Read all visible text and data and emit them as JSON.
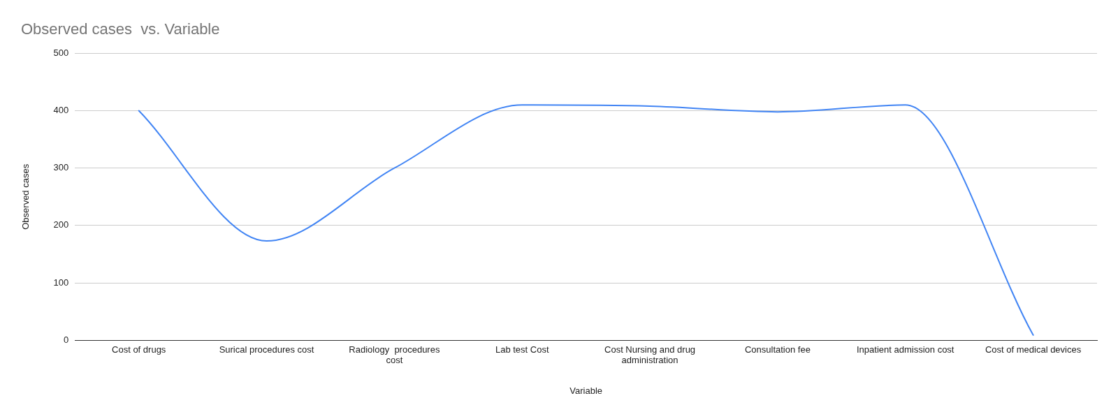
{
  "chart_data": {
    "type": "line",
    "title": "Observed cases  vs. Variable",
    "xlabel": "Variable",
    "ylabel": "Observed cases",
    "categories": [
      "Cost of drugs",
      "Surical procedures cost",
      "Radiology  procedures cost",
      "Lab test Cost",
      "Cost Nursing and drug administration",
      "Consultation fee",
      "Inpatient admission cost",
      "Cost of medical devices"
    ],
    "values": [
      400,
      173,
      300,
      410,
      408,
      398,
      410,
      9
    ],
    "color": "#4285f4",
    "ylim": [
      0,
      500
    ],
    "yticks": [
      0,
      100,
      200,
      300,
      400,
      500
    ],
    "grid": "y"
  }
}
